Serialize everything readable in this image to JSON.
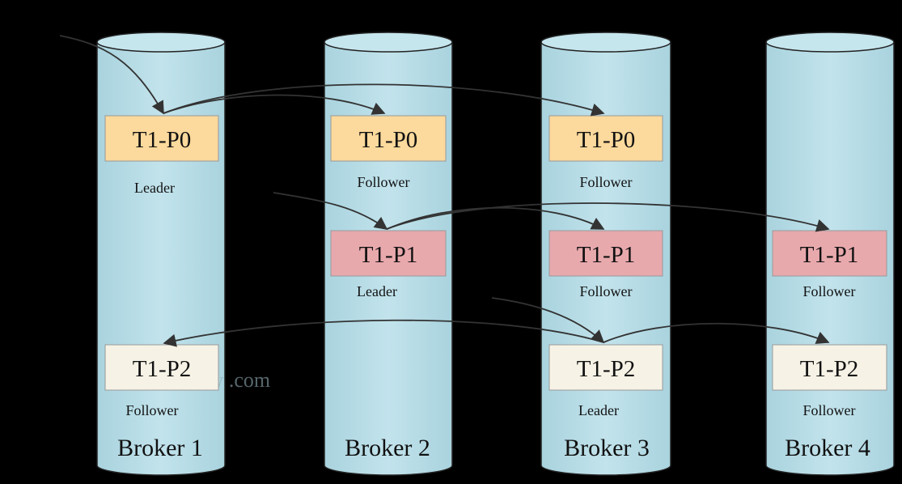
{
  "colors": {
    "cylinder": "#b5dbe5",
    "leader_p0": "#fcd99c",
    "leader_p1": "#e8a9ad",
    "p2": "#f6f3e6",
    "line": "#333333"
  },
  "brokers": [
    {
      "label": "Broker 1"
    },
    {
      "label": "Broker 2"
    },
    {
      "label": "Broker 3"
    },
    {
      "label": "Broker 4"
    }
  ],
  "partitions": {
    "b1": [
      {
        "label": "T1-P0",
        "role": "Leader",
        "style": "p0"
      },
      {
        "label": "T1-P2",
        "role": "Follower",
        "style": "p2"
      }
    ],
    "b2": [
      {
        "label": "T1-P0",
        "role": "Follower",
        "style": "p0"
      },
      {
        "label": "T1-P1",
        "role": "Leader",
        "style": "p1"
      }
    ],
    "b3": [
      {
        "label": "T1-P0",
        "role": "Follower",
        "style": "p0"
      },
      {
        "label": "T1-P1",
        "role": "Follower",
        "style": "p1"
      },
      {
        "label": "T1-P2",
        "role": "Leader",
        "style": "p2"
      }
    ],
    "b4": [
      {
        "label": "T1-P1",
        "role": "Follower",
        "style": "p1"
      },
      {
        "label": "T1-P2",
        "role": "Follower",
        "style": "p2"
      }
    ]
  },
  "watermark": "www          .com"
}
